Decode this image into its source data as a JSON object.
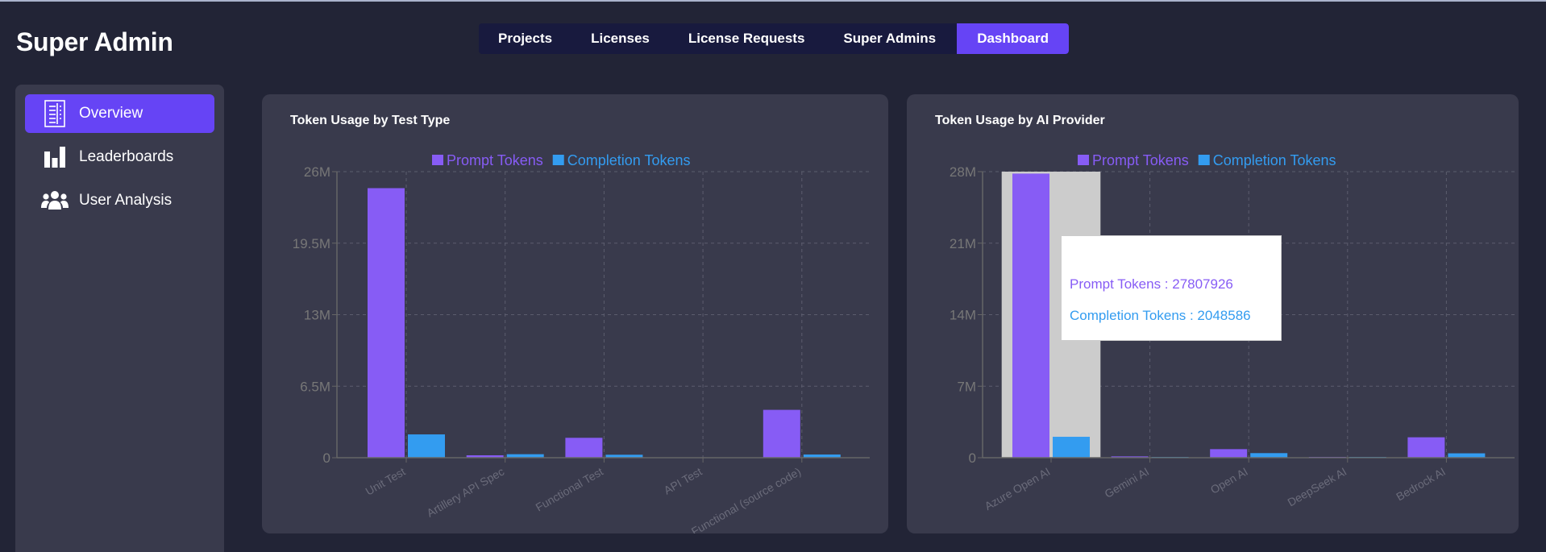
{
  "app": {
    "title": "Super Admin"
  },
  "nav": {
    "tabs": [
      {
        "label": "Projects",
        "active": false
      },
      {
        "label": "Licenses",
        "active": false
      },
      {
        "label": "License Requests",
        "active": false
      },
      {
        "label": "Super Admins",
        "active": false
      },
      {
        "label": "Dashboard",
        "active": true
      }
    ]
  },
  "sidebar": {
    "items": [
      {
        "label": "Overview",
        "icon": "document-list-icon",
        "active": true
      },
      {
        "label": "Leaderboards",
        "icon": "bar-chart-icon",
        "active": false
      },
      {
        "label": "User Analysis",
        "icon": "users-icon",
        "active": false
      }
    ]
  },
  "colors": {
    "accent": "#6644f5",
    "prompt": "#875cf5",
    "completion": "#339cf0",
    "hover_band": "#cccccc"
  },
  "chart_data": [
    {
      "type": "bar",
      "title": "Token Usage by Test Type",
      "categories": [
        "Unit Test",
        "Artillery API Spec",
        "Functional Test",
        "API Test",
        "Functional (source code)"
      ],
      "series": [
        {
          "name": "Prompt Tokens",
          "values": [
            24500000,
            220000,
            1810000,
            0,
            4350000
          ]
        },
        {
          "name": "Completion Tokens",
          "values": [
            2120000,
            320000,
            270000,
            0,
            290000
          ]
        }
      ],
      "yticks": [
        "0",
        "6.5M",
        "13M",
        "19.5M",
        "26M"
      ],
      "ylim": [
        0,
        26000000
      ],
      "grid": true,
      "legend": "top-center"
    },
    {
      "type": "bar",
      "title": "Token Usage by AI Provider",
      "categories": [
        "Azure Open AI",
        "Gemini AI",
        "Open AI",
        "DeepSeek AI",
        "Bedrock AI"
      ],
      "series": [
        {
          "name": "Prompt Tokens",
          "values": [
            27807926,
            130000,
            840000,
            80000,
            2000000
          ]
        },
        {
          "name": "Completion Tokens",
          "values": [
            2048586,
            50000,
            450000,
            20000,
            430000
          ]
        }
      ],
      "yticks": [
        "0",
        "7M",
        "14M",
        "21M",
        "28M"
      ],
      "ylim": [
        0,
        28000000
      ],
      "grid": true,
      "legend": "top-center",
      "hovered_category": "Azure Open AI",
      "tooltip": {
        "prompt": "Prompt Tokens : 27807926",
        "completion": "Completion Tokens : 2048586"
      }
    }
  ]
}
